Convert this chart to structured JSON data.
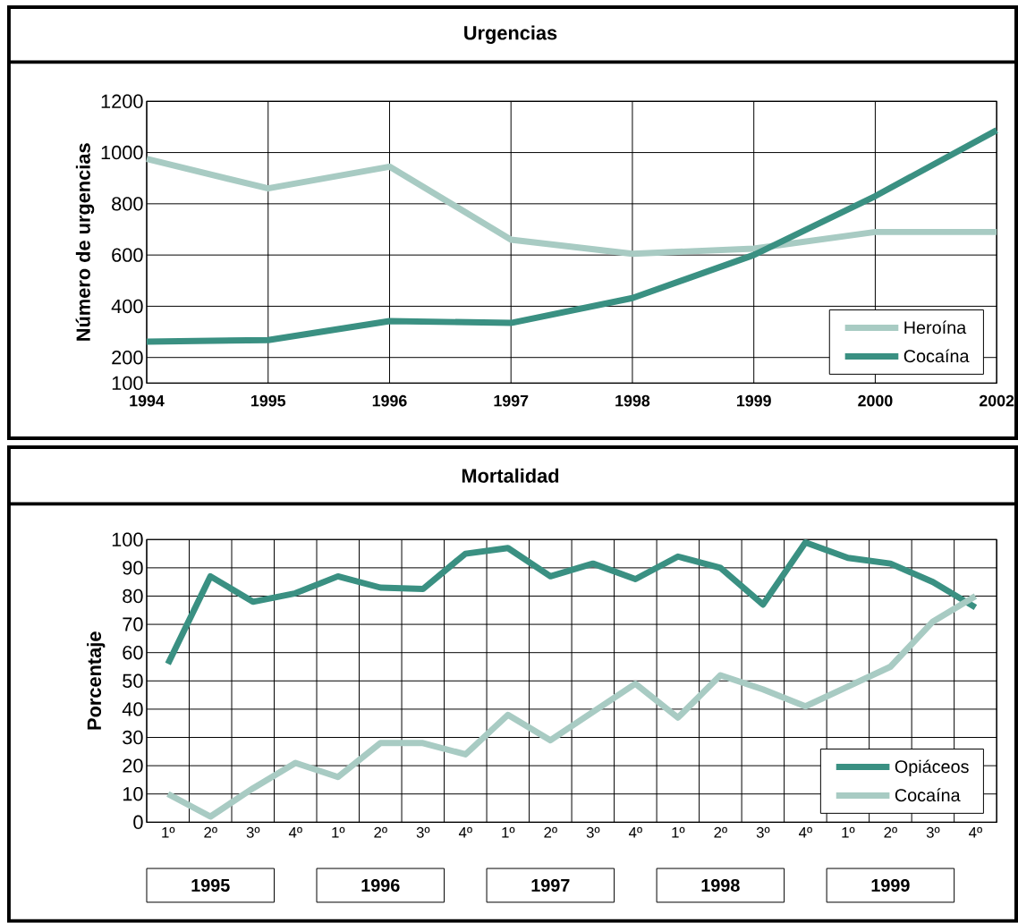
{
  "chart_data": [
    {
      "type": "line",
      "title": "Urgencias",
      "ylabel": "Número de urgencias",
      "categories": [
        "1994",
        "1995",
        "1996",
        "1997",
        "1998",
        "1999",
        "2000",
        "2002"
      ],
      "series": [
        {
          "name": "Heroína",
          "color": "#a8cbc3",
          "values": [
            975,
            860,
            945,
            660,
            605,
            625,
            690,
            690
          ]
        },
        {
          "name": "Cocaína",
          "color": "#3a9082",
          "values": [
            262,
            268,
            342,
            335,
            432,
            600,
            830,
            1087
          ]
        }
      ],
      "ylim": [
        100,
        1200
      ],
      "yticks": [
        100,
        200,
        400,
        600,
        800,
        1000,
        1200
      ],
      "grid": true,
      "legend": "bottom right"
    },
    {
      "type": "line",
      "title": "Mortalidad",
      "ylabel": "Porcentaje",
      "categories": [
        "1º",
        "2º",
        "3º",
        "4º",
        "1º",
        "2º",
        "3º",
        "4º",
        "1º",
        "2º",
        "3º",
        "4º",
        "1º",
        "2º",
        "3º",
        "4º",
        "1º",
        "2º",
        "3º",
        "4º"
      ],
      "series": [
        {
          "name": "Opiáceos",
          "color": "#3a9082",
          "values": [
            56,
            87,
            78,
            81,
            87,
            83,
            82.5,
            95,
            97,
            87,
            91.5,
            86,
            94,
            90,
            77,
            99,
            93.5,
            91.5,
            85,
            76
          ]
        },
        {
          "name": "Cocaína",
          "color": "#a8cbc3",
          "values": [
            10,
            2,
            12,
            21,
            16,
            28,
            28,
            24,
            38,
            29,
            39,
            49,
            37,
            52,
            47,
            41,
            48,
            55,
            71,
            80
          ]
        }
      ],
      "ylim": [
        0,
        100
      ],
      "yticks": [
        0,
        10,
        20,
        30,
        40,
        50,
        60,
        70,
        80,
        90,
        100
      ],
      "grid": true,
      "legend": "bottom right",
      "annotations": [
        "1995",
        "1996",
        "1997",
        "1998",
        "1999"
      ]
    }
  ]
}
